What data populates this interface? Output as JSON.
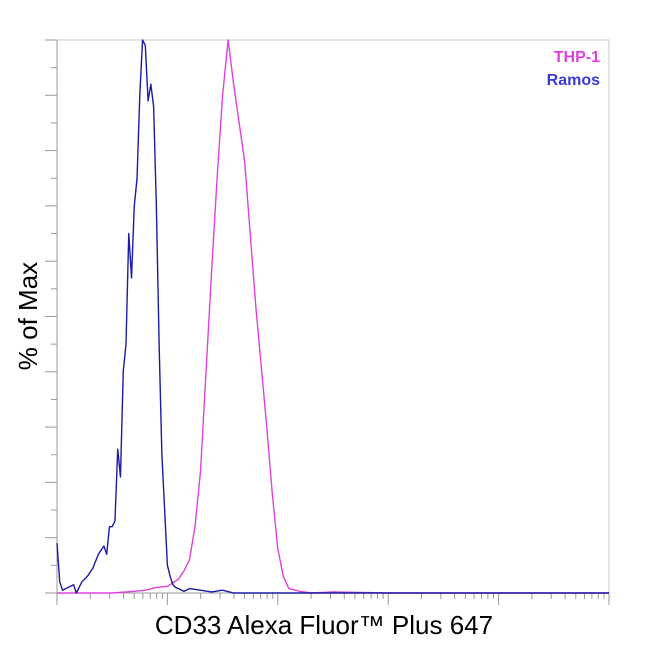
{
  "chart_data": {
    "type": "line",
    "title": "",
    "xlabel": "CD33 Alexa Fluor™ Plus 647",
    "ylabel": "% of Max",
    "x_scale": "log",
    "xlim": [
      0,
      1
    ],
    "ylim": [
      0,
      100
    ],
    "grid": false,
    "legend_position": "top-right",
    "series": [
      {
        "name": "THP-1",
        "color": "#e040e0",
        "x": [
          0.0,
          0.05,
          0.1,
          0.14,
          0.16,
          0.18,
          0.2,
          0.22,
          0.23,
          0.24,
          0.25,
          0.26,
          0.27,
          0.28,
          0.29,
          0.3,
          0.31,
          0.32,
          0.34,
          0.36,
          0.38,
          0.39,
          0.4,
          0.41,
          0.42,
          0.44,
          0.46,
          0.5,
          0.6,
          0.8,
          1.0
        ],
        "y": [
          0,
          0,
          0,
          0.3,
          0.5,
          1,
          1.2,
          2.5,
          4,
          6,
          12,
          22,
          40,
          58,
          75,
          90,
          100,
          92,
          78,
          52,
          30,
          18,
          8,
          3,
          0.8,
          0.3,
          0,
          0.2,
          0,
          0,
          0
        ]
      },
      {
        "name": "Ramos",
        "color": "#1a1aa6",
        "x": [
          0.0,
          0.005,
          0.01,
          0.02,
          0.03,
          0.035,
          0.045,
          0.055,
          0.065,
          0.075,
          0.085,
          0.09,
          0.095,
          0.1,
          0.105,
          0.11,
          0.115,
          0.12,
          0.125,
          0.13,
          0.135,
          0.14,
          0.145,
          0.15,
          0.155,
          0.16,
          0.165,
          0.17,
          0.175,
          0.18,
          0.185,
          0.19,
          0.195,
          0.2,
          0.205,
          0.21,
          0.215,
          0.22,
          0.23,
          0.24,
          0.26,
          0.28,
          0.3,
          0.32,
          0.35,
          0.4,
          1.0
        ],
        "y": [
          9,
          2,
          0.5,
          1,
          1.5,
          0,
          2,
          3,
          4.5,
          7,
          8.5,
          7,
          12,
          12,
          13,
          26,
          21,
          40,
          45,
          65,
          57,
          70,
          75,
          90,
          100,
          99,
          89,
          92,
          88,
          70,
          45,
          25,
          15,
          5,
          3,
          1.5,
          1,
          0.8,
          0.3,
          0.8,
          0.5,
          0.2,
          0.5,
          0,
          0,
          0,
          0
        ]
      }
    ]
  }
}
